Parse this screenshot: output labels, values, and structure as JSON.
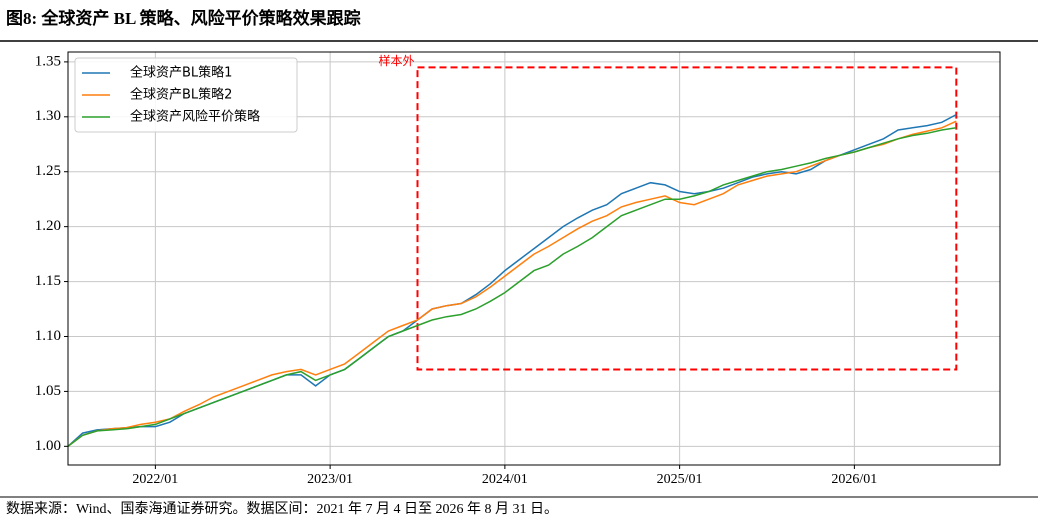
{
  "chart_data": {
    "type": "line",
    "title": "图8:  全球资产 BL 策略、风险平价策略效果跟踪",
    "source": "数据来源：Wind、国泰海通证券研究。数据区间：2021 年 7 月 4 日至 2026 年 8 月 31 日。",
    "x": [
      "2021/07",
      "2021/08",
      "2021/09",
      "2021/10",
      "2021/11",
      "2021/12",
      "2022/01",
      "2022/02",
      "2022/03",
      "2022/04",
      "2022/05",
      "2022/06",
      "2022/07",
      "2022/08",
      "2022/09",
      "2022/10",
      "2022/11",
      "2022/12",
      "2023/01",
      "2023/02",
      "2023/03",
      "2023/04",
      "2023/05",
      "2023/06",
      "2023/07",
      "2023/08",
      "2023/09",
      "2023/10",
      "2023/11",
      "2023/12",
      "2024/01",
      "2024/02",
      "2024/03",
      "2024/04",
      "2024/05",
      "2024/06",
      "2024/07",
      "2024/08",
      "2024/09",
      "2024/10",
      "2024/11",
      "2024/12",
      "2025/01",
      "2025/02",
      "2025/03",
      "2025/04",
      "2025/05",
      "2025/06",
      "2025/07",
      "2025/08",
      "2025/09",
      "2025/10",
      "2025/11",
      "2025/12",
      "2026/01",
      "2026/02",
      "2026/03",
      "2026/04",
      "2026/05",
      "2026/06",
      "2026/07",
      "2026/08"
    ],
    "series": [
      {
        "name": "全球资产BL策略1",
        "color": "#1f77b4",
        "values": [
          1.0,
          1.012,
          1.015,
          1.016,
          1.017,
          1.018,
          1.018,
          1.022,
          1.03,
          1.035,
          1.04,
          1.045,
          1.05,
          1.055,
          1.06,
          1.065,
          1.065,
          1.055,
          1.065,
          1.07,
          1.08,
          1.09,
          1.1,
          1.105,
          1.115,
          1.125,
          1.128,
          1.13,
          1.138,
          1.148,
          1.16,
          1.17,
          1.18,
          1.19,
          1.2,
          1.208,
          1.215,
          1.22,
          1.23,
          1.235,
          1.24,
          1.238,
          1.232,
          1.23,
          1.232,
          1.235,
          1.24,
          1.245,
          1.248,
          1.25,
          1.248,
          1.252,
          1.26,
          1.265,
          1.27,
          1.275,
          1.28,
          1.288,
          1.29,
          1.292,
          1.295,
          1.302
        ]
      },
      {
        "name": "全球资产BL策略2",
        "color": "#ff7f0e",
        "values": [
          1.0,
          1.01,
          1.014,
          1.016,
          1.017,
          1.02,
          1.022,
          1.025,
          1.032,
          1.038,
          1.045,
          1.05,
          1.055,
          1.06,
          1.065,
          1.068,
          1.07,
          1.065,
          1.07,
          1.075,
          1.085,
          1.095,
          1.105,
          1.11,
          1.115,
          1.125,
          1.128,
          1.13,
          1.136,
          1.145,
          1.155,
          1.165,
          1.175,
          1.182,
          1.19,
          1.198,
          1.205,
          1.21,
          1.218,
          1.222,
          1.225,
          1.228,
          1.222,
          1.22,
          1.225,
          1.23,
          1.238,
          1.242,
          1.246,
          1.248,
          1.25,
          1.255,
          1.26,
          1.265,
          1.268,
          1.272,
          1.275,
          1.28,
          1.284,
          1.287,
          1.29,
          1.296
        ]
      },
      {
        "name": "全球资产风险平价策略",
        "color": "#2ca02c",
        "values": [
          1.0,
          1.01,
          1.014,
          1.015,
          1.016,
          1.018,
          1.02,
          1.025,
          1.03,
          1.035,
          1.04,
          1.045,
          1.05,
          1.055,
          1.06,
          1.065,
          1.068,
          1.06,
          1.065,
          1.07,
          1.08,
          1.09,
          1.1,
          1.105,
          1.11,
          1.115,
          1.118,
          1.12,
          1.125,
          1.132,
          1.14,
          1.15,
          1.16,
          1.165,
          1.175,
          1.182,
          1.19,
          1.2,
          1.21,
          1.215,
          1.22,
          1.225,
          1.225,
          1.228,
          1.232,
          1.238,
          1.242,
          1.246,
          1.25,
          1.252,
          1.255,
          1.258,
          1.262,
          1.265,
          1.268,
          1.272,
          1.276,
          1.28,
          1.283,
          1.285,
          1.288,
          1.29
        ]
      }
    ],
    "xlim": [
      "2021/07",
      "2026/11"
    ],
    "xticks": [
      "2022/01",
      "2023/01",
      "2024/01",
      "2025/01",
      "2026/01"
    ],
    "ylim": [
      0.983,
      1.359
    ],
    "yticks": [
      {
        "value": 1.0,
        "label": "1.00"
      },
      1.05,
      {
        "value": 1.1,
        "label": "1.10"
      },
      1.15,
      {
        "value": 1.2,
        "label": "1.20"
      },
      1.25,
      {
        "value": 1.3,
        "label": "1.30"
      },
      1.35
    ],
    "grid": true,
    "legend": "upper left",
    "out_of_sample": {
      "label": "样本外",
      "color": "#ff0000",
      "x": [
        "2023/07",
        "2026/08"
      ],
      "y": [
        1.07,
        1.345
      ]
    }
  }
}
